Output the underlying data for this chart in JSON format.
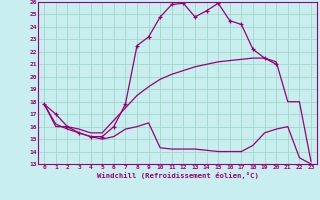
{
  "xlabel": "Windchill (Refroidissement éolien,°C)",
  "background_color": "#c8eef0",
  "grid_color": "#a0d8c8",
  "line_color": "#990077",
  "xlim": [
    -0.5,
    23.5
  ],
  "ylim": [
    13,
    26
  ],
  "yticks": [
    13,
    14,
    15,
    16,
    17,
    18,
    19,
    20,
    21,
    22,
    23,
    24,
    25,
    26
  ],
  "xticks": [
    0,
    1,
    2,
    3,
    4,
    5,
    6,
    7,
    8,
    9,
    10,
    11,
    12,
    13,
    14,
    15,
    16,
    17,
    18,
    19,
    20,
    21,
    22,
    23
  ],
  "line1_x": [
    0,
    1,
    2,
    3,
    4,
    5,
    6,
    7,
    8,
    9,
    10,
    11,
    12,
    13,
    14,
    15,
    16,
    17,
    18,
    19,
    20
  ],
  "line1_y": [
    17.8,
    17.0,
    16.0,
    15.5,
    15.2,
    15.2,
    16.0,
    17.8,
    22.5,
    23.2,
    24.8,
    25.8,
    25.9,
    24.8,
    25.3,
    25.9,
    24.5,
    24.2,
    22.2,
    21.5,
    21.0
  ],
  "line2_x": [
    0,
    1,
    2,
    3,
    4,
    5,
    6,
    7,
    8,
    9,
    10,
    11,
    12,
    13,
    14,
    15,
    16,
    17,
    18,
    19,
    20,
    21,
    22,
    23
  ],
  "line2_y": [
    17.8,
    16.0,
    16.0,
    15.8,
    15.5,
    15.5,
    16.5,
    17.5,
    18.5,
    19.2,
    19.8,
    20.2,
    20.5,
    20.8,
    21.0,
    21.2,
    21.3,
    21.4,
    21.5,
    21.5,
    21.2,
    18.0,
    18.0,
    13.2
  ],
  "line3_x": [
    0,
    1,
    2,
    3,
    4,
    5,
    6,
    7,
    8,
    9,
    10,
    11,
    12,
    13,
    14,
    15,
    16,
    17,
    18,
    19,
    20,
    21,
    22,
    23
  ],
  "line3_y": [
    17.8,
    16.2,
    15.8,
    15.5,
    15.2,
    15.0,
    15.2,
    15.8,
    16.0,
    16.3,
    14.3,
    14.2,
    14.2,
    14.2,
    14.1,
    14.0,
    14.0,
    14.0,
    14.5,
    15.5,
    15.8,
    16.0,
    13.5,
    13.0
  ]
}
